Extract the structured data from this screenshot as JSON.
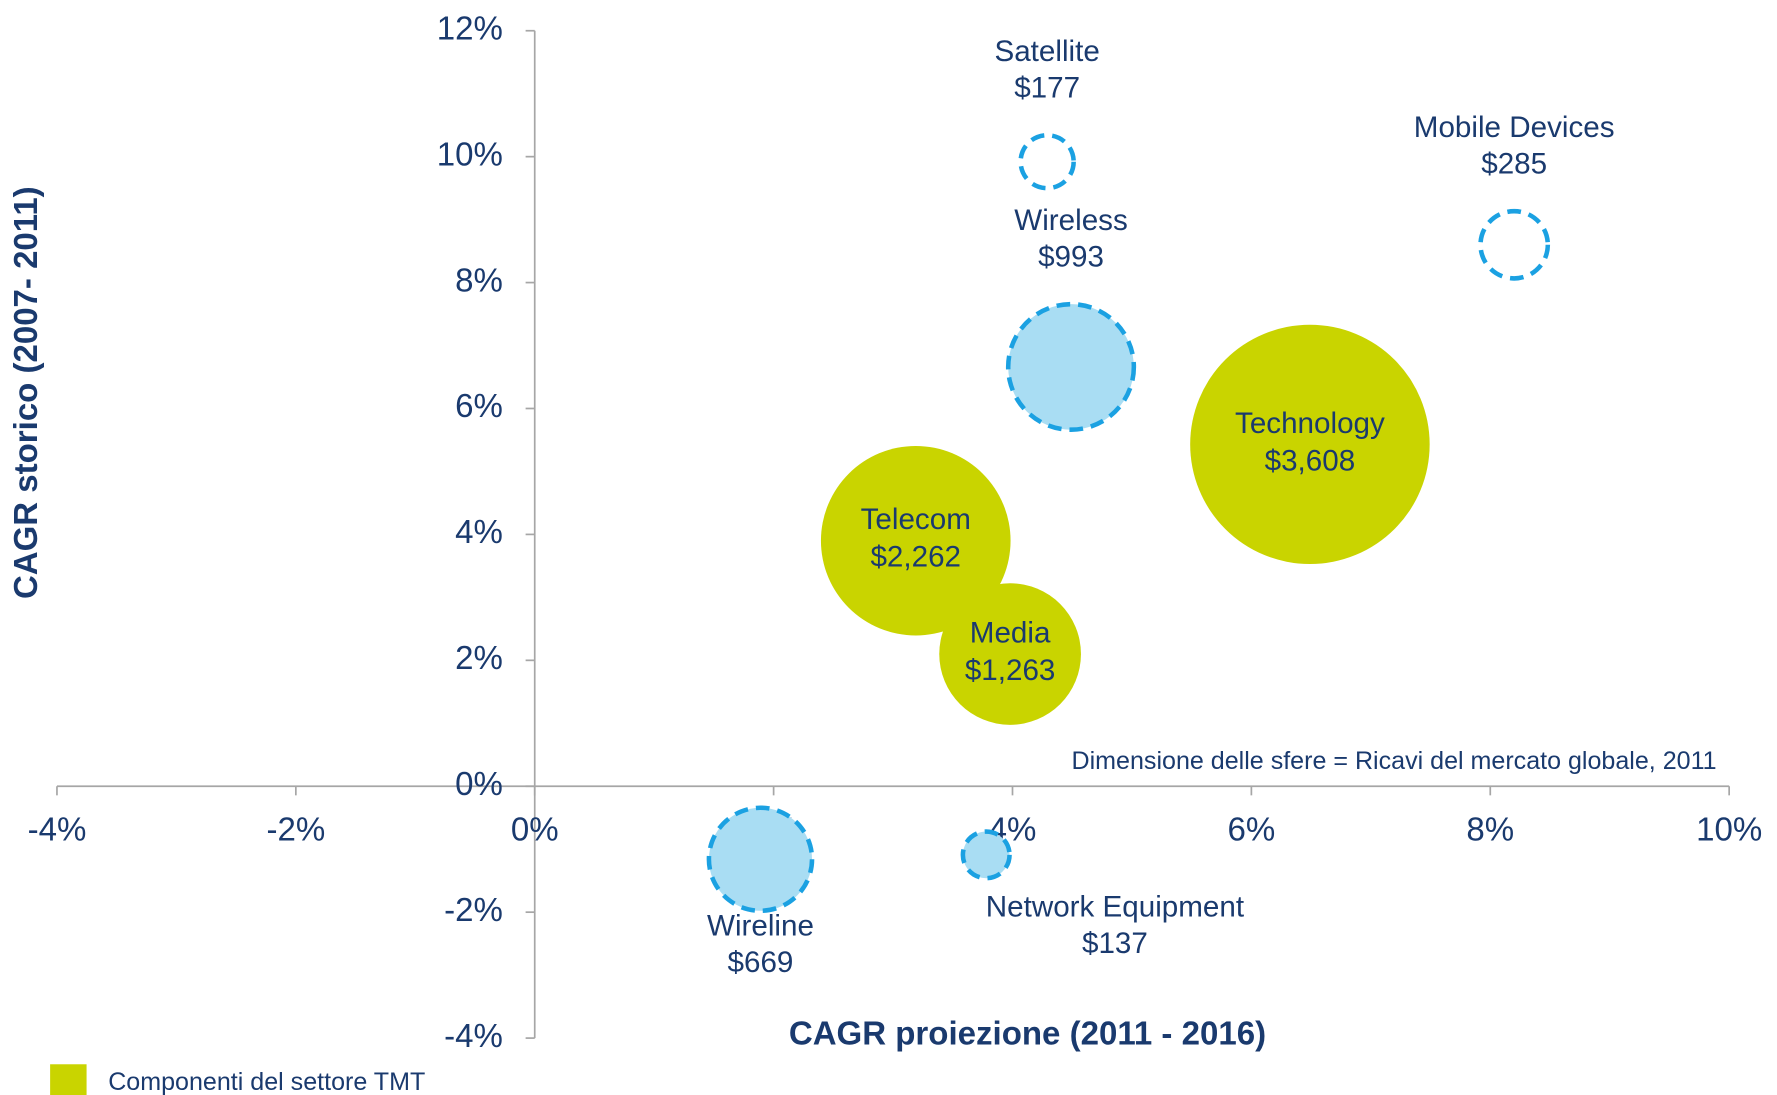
{
  "chart_data": {
    "type": "scatter",
    "xlabel": "CAGR proiezione (2011 - 2016)",
    "ylabel": "CAGR storico (2007- 2011)",
    "annotation": "Dimensione delle sfere = Ricavi del mercato globale, 2011",
    "xlim": [
      -4,
      10
    ],
    "ylim": [
      -4,
      12
    ],
    "xticks": [
      {
        "value": -4,
        "label": "-4%"
      },
      {
        "value": -2,
        "label": "-2%"
      },
      {
        "value": 0,
        "label": "0%"
      },
      {
        "value": 2,
        "label": "2%"
      },
      {
        "value": 4,
        "label": "4%"
      },
      {
        "value": 6,
        "label": "6%"
      },
      {
        "value": 8,
        "label": "8%"
      },
      {
        "value": 10,
        "label": "10%"
      }
    ],
    "yticks": [
      {
        "value": -4,
        "label": "-4%"
      },
      {
        "value": -2,
        "label": "-2%"
      },
      {
        "value": 0,
        "label": "0%"
      },
      {
        "value": 2,
        "label": "2%"
      },
      {
        "value": 4,
        "label": "4%"
      },
      {
        "value": 6,
        "label": "6%"
      },
      {
        "value": 8,
        "label": "8%"
      },
      {
        "value": 10,
        "label": "10%"
      },
      {
        "value": 12,
        "label": "12%"
      }
    ],
    "series": [
      {
        "name": "Componenti del settore TMT",
        "color": "#c9d400",
        "dashed": false,
        "points": [
          {
            "label": "Technology",
            "x": 6.49,
            "y": 5.43,
            "size": 3608,
            "size_label": "$3,608",
            "fill": "#c9d400",
            "label_position": "center"
          },
          {
            "label": "Telecom",
            "x": 3.19,
            "y": 3.9,
            "size": 2262,
            "size_label": "$2,262",
            "fill": "#c9d400",
            "label_position": "center"
          },
          {
            "label": "Media",
            "x": 3.98,
            "y": 2.1,
            "size": 1263,
            "size_label": "$1,263",
            "fill": "#c9d400",
            "label_position": "center"
          }
        ]
      },
      {
        "color": "#1ba1e2",
        "dashed": true,
        "points": [
          {
            "label": "Satellite",
            "x": 4.29,
            "y": 9.92,
            "size": 177,
            "size_label": "$177",
            "fill": "#ffffff",
            "label_position": "top"
          },
          {
            "label": "Mobile Devices",
            "x": 8.2,
            "y": 8.6,
            "size": 285,
            "size_label": "$285",
            "fill": "#ffffff",
            "label_position": "top"
          },
          {
            "label": "Wireless",
            "x": 4.49,
            "y": 6.66,
            "size": 993,
            "size_label": "$993",
            "fill": "#a9ddf3",
            "label_position": "top"
          },
          {
            "label": "Wireline",
            "x": 1.89,
            "y": -1.16,
            "size": 669,
            "size_label": "$669",
            "fill": "#a9ddf3",
            "label_position": "bottom"
          },
          {
            "label": "Network Equipment",
            "x": 3.78,
            "y": -1.09,
            "size": 137,
            "size_label": "$137",
            "fill": "#a9ddf3",
            "label_position": "bottom-right"
          }
        ]
      }
    ]
  }
}
